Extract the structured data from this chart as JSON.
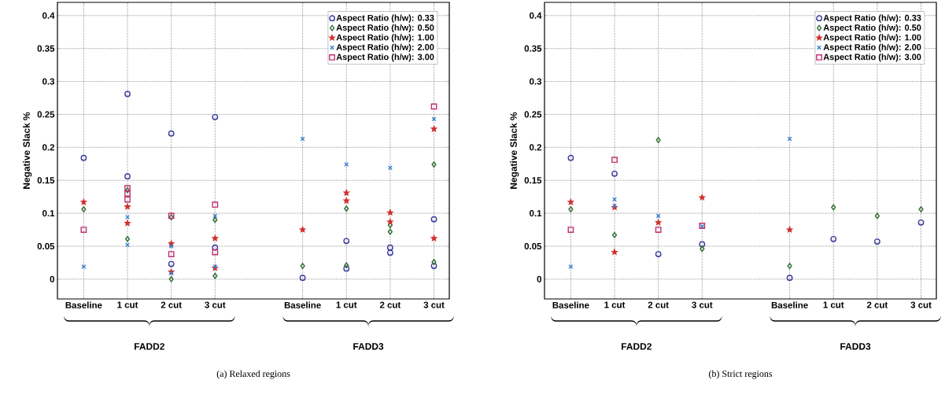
{
  "chart_data": [
    {
      "type": "scatter",
      "ylabel": "Negative Slack %",
      "ylim": [
        -0.03,
        0.42
      ],
      "categories": [
        "Baseline",
        "1 cut",
        "2 cut",
        "3 cut",
        null,
        "Baseline",
        "1 cut",
        "2 cut",
        "3 cut"
      ],
      "yticks": [
        0,
        0.05,
        0.1,
        0.15,
        0.2,
        0.25,
        0.3,
        0.35,
        0.4
      ],
      "grid": true,
      "legend": "top right",
      "annotations": [
        "FADD2",
        "FADD3",
        "(a) Relaxed regions"
      ],
      "series": [
        {
          "name": "Aspect Ratio (h/w): 0.33",
          "color": "#3a3aa0",
          "marker": "circle",
          "values": [
            0.184,
            0.281,
            0.221,
            0.246,
            null,
            0.002,
            0.058,
            0.048,
            0.091
          ]
        },
        {
          "name": "Aspect Ratio (h/w): 0.50",
          "color": "#2e6b30",
          "marker": "diamond",
          "values": [
            0.106,
            0.135,
            0.094,
            0.09,
            null,
            0.02,
            0.107,
            0.082,
            0.174
          ]
        },
        {
          "name": "Aspect Ratio (h/w): 1.00",
          "color": "#d03030",
          "marker": "star",
          "values": [
            0.117,
            0.11,
            0.054,
            0.062,
            null,
            0.075,
            0.131,
            0.101,
            0.228
          ]
        },
        {
          "name": "Aspect Ratio (h/w): 2.00",
          "color": "#3080d0",
          "marker": "cross",
          "values": [
            0.019,
            0.094,
            0.05,
            0.096,
            null,
            0.213,
            0.174,
            0.169,
            0.243
          ]
        },
        {
          "name": "Aspect Ratio (h/w): 3.00",
          "color": "#c03070",
          "marker": "square",
          "values": [
            0.075,
            0.138,
            0.096,
            0.113,
            null,
            null,
            null,
            null,
            0.262
          ]
        },
        {
          "color": "#3a3aa0",
          "marker": "circle",
          "values": [
            null,
            0.156,
            0.023,
            0.048,
            null,
            null,
            0.016,
            0.04,
            0.02
          ]
        },
        {
          "color": "#2e6b30",
          "marker": "diamond",
          "values": [
            null,
            0.061,
            0,
            0.005,
            null,
            null,
            0.021,
            0.072,
            0.026
          ]
        },
        {
          "color": "#d03030",
          "marker": "star",
          "values": [
            null,
            0.085,
            0.011,
            0.017,
            null,
            null,
            0.119,
            0.087,
            0.062
          ]
        },
        {
          "color": "#3080d0",
          "marker": "cross",
          "values": [
            null,
            0.052,
            0.009,
            0.019,
            null,
            null,
            null,
            null,
            null
          ]
        },
        {
          "color": "#c03070",
          "marker": "square",
          "values": [
            null,
            0.13,
            0.038,
            0.041,
            null,
            null,
            null,
            null,
            null
          ]
        },
        {
          "color": "#c03070",
          "marker": "square",
          "values": [
            null,
            0.121,
            null,
            null,
            null,
            null,
            null,
            null,
            null
          ]
        }
      ]
    },
    {
      "type": "scatter",
      "ylabel": "Negative Slack %",
      "ylim": [
        -0.03,
        0.42
      ],
      "categories": [
        "Baseline",
        "1 cut",
        "2 cut",
        "3 cut",
        null,
        "Baseline",
        "1 cut",
        "2 cut",
        "3 cut"
      ],
      "yticks": [
        0,
        0.05,
        0.1,
        0.15,
        0.2,
        0.25,
        0.3,
        0.35,
        0.4
      ],
      "grid": true,
      "legend": "top right",
      "annotations": [
        "FADD2",
        "FADD3",
        "(b) Strict regions"
      ],
      "series": [
        {
          "name": "Aspect Ratio (h/w): 0.33",
          "color": "#3a3aa0",
          "marker": "circle",
          "values": [
            0.184,
            0.16,
            0.038,
            0.053,
            null,
            0.002,
            0.061,
            0.057,
            0.086
          ]
        },
        {
          "name": "Aspect Ratio (h/w): 0.50",
          "color": "#2e6b30",
          "marker": "diamond",
          "values": [
            0.106,
            0.067,
            0.211,
            0.046,
            null,
            0.02,
            0.109,
            0.096,
            0.106
          ]
        },
        {
          "name": "Aspect Ratio (h/w): 1.00",
          "color": "#d03030",
          "marker": "star",
          "values": [
            0.117,
            0.109,
            0.086,
            0.124,
            null,
            0.075,
            null,
            null,
            null
          ]
        },
        {
          "name": "Aspect Ratio (h/w): 2.00",
          "color": "#3080d0",
          "marker": "cross",
          "values": [
            0.019,
            0.121,
            0.096,
            0.08,
            null,
            0.213,
            null,
            null,
            null
          ]
        },
        {
          "name": "Aspect Ratio (h/w): 3.00",
          "color": "#c03070",
          "marker": "square",
          "values": [
            0.075,
            0.181,
            0.075,
            0.081,
            null,
            null,
            null,
            null,
            null
          ]
        },
        {
          "color": "#d03030",
          "marker": "star",
          "values": [
            null,
            0.041,
            null,
            null,
            null,
            null,
            null,
            null,
            null
          ]
        },
        {
          "color": "#3080d0",
          "marker": "cross",
          "values": [
            null,
            0.111,
            null,
            null,
            null,
            null,
            null,
            null,
            null
          ]
        }
      ]
    }
  ]
}
